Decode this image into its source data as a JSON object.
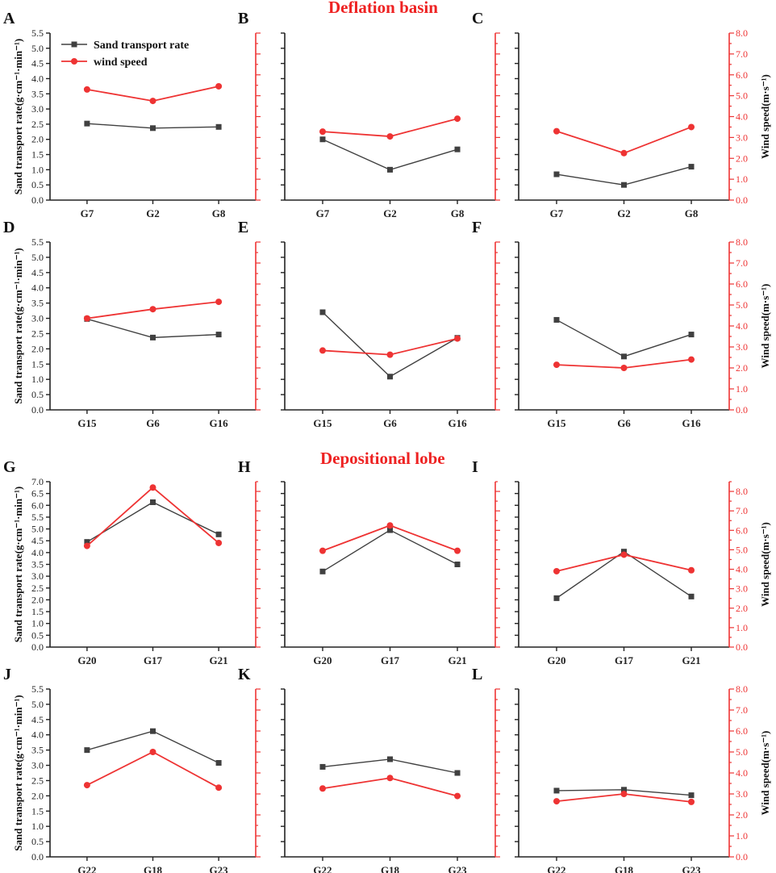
{
  "headings": {
    "top": "Deflation basin",
    "bottom": "Depositional lobe"
  },
  "colors": {
    "sand": "#404040",
    "wind": "#ee3333",
    "axis": "#222222",
    "wind_axis": "#ee3333"
  },
  "legend": {
    "sand_label": "Sand transport rate",
    "wind_label": "wind speed"
  },
  "chart_data": [
    {
      "type": "line",
      "panel": "A",
      "categories": [
        "G7",
        "G2",
        "G8"
      ],
      "ylabel": "Sand transport rate(g·cm⁻¹·min⁻¹)",
      "ylabel_right": "",
      "ylim": [
        0,
        5.5
      ],
      "y2lim": [
        0,
        8
      ],
      "yticks": [
        "0.0",
        "0.5",
        "1.0",
        "1.5",
        "2.0",
        "2.5",
        "3.0",
        "3.5",
        "4.0",
        "4.5",
        "5.0",
        "5.5"
      ],
      "y2ticks": [],
      "series": [
        {
          "name": "Sand transport rate",
          "axis": "left",
          "values": [
            2.52,
            2.37,
            2.41
          ]
        },
        {
          "name": "wind speed",
          "axis": "right",
          "values": [
            5.3,
            4.75,
            5.45
          ]
        }
      ]
    },
    {
      "type": "line",
      "panel": "B",
      "categories": [
        "G7",
        "G2",
        "G8"
      ],
      "ylabel": "",
      "ylabel_right": "",
      "ylim": [
        0,
        5.5
      ],
      "y2lim": [
        0,
        8
      ],
      "yticks": [],
      "y2ticks": [],
      "series": [
        {
          "name": "Sand transport rate",
          "axis": "left",
          "values": [
            2.0,
            1.0,
            1.67
          ]
        },
        {
          "name": "wind speed",
          "axis": "right",
          "values": [
            3.28,
            3.05,
            3.9
          ]
        }
      ]
    },
    {
      "type": "line",
      "panel": "C",
      "categories": [
        "G7",
        "G2",
        "G8"
      ],
      "ylabel": "",
      "ylabel_right": "Wind speed(m·s⁻¹)",
      "ylim": [
        0,
        5.5
      ],
      "y2lim": [
        0,
        8
      ],
      "yticks": [],
      "y2ticks": [
        "0.0",
        "1.0",
        "2.0",
        "3.0",
        "4.0",
        "5.0",
        "6.0",
        "7.0",
        "8.0"
      ],
      "series": [
        {
          "name": "Sand transport rate",
          "axis": "left",
          "values": [
            0.85,
            0.5,
            1.1
          ]
        },
        {
          "name": "wind speed",
          "axis": "right",
          "values": [
            3.3,
            2.25,
            3.5
          ]
        }
      ]
    },
    {
      "type": "line",
      "panel": "D",
      "categories": [
        "G15",
        "G6",
        "G16"
      ],
      "ylabel": "Sand transport rate(g·cm⁻¹·min⁻¹)",
      "ylabel_right": "",
      "ylim": [
        0,
        5.5
      ],
      "y2lim": [
        0,
        8
      ],
      "yticks": [
        "0.0",
        "0.5",
        "1.0",
        "1.5",
        "2.0",
        "2.5",
        "3.0",
        "3.5",
        "4.0",
        "4.5",
        "5.0",
        "5.5"
      ],
      "y2ticks": [],
      "series": [
        {
          "name": "Sand transport rate",
          "axis": "left",
          "values": [
            2.98,
            2.37,
            2.47
          ]
        },
        {
          "name": "wind speed",
          "axis": "right",
          "values": [
            4.36,
            4.8,
            5.15
          ]
        }
      ]
    },
    {
      "type": "line",
      "panel": "E",
      "categories": [
        "G15",
        "G6",
        "G16"
      ],
      "ylabel": "",
      "ylabel_right": "",
      "ylim": [
        0,
        5.5
      ],
      "y2lim": [
        0,
        8
      ],
      "yticks": [],
      "y2ticks": [],
      "series": [
        {
          "name": "Sand transport rate",
          "axis": "left",
          "values": [
            3.2,
            1.09,
            2.36
          ]
        },
        {
          "name": "wind speed",
          "axis": "right",
          "values": [
            2.83,
            2.63,
            3.4
          ]
        }
      ]
    },
    {
      "type": "line",
      "panel": "F",
      "categories": [
        "G15",
        "G6",
        "G16"
      ],
      "ylabel": "",
      "ylabel_right": "Wind speed(m·s⁻¹)",
      "ylim": [
        0,
        5.5
      ],
      "y2lim": [
        0,
        8
      ],
      "yticks": [],
      "y2ticks": [
        "0.0",
        "1.0",
        "2.0",
        "3.0",
        "4.0",
        "5.0",
        "6.0",
        "7.0",
        "8.0"
      ],
      "series": [
        {
          "name": "Sand transport rate",
          "axis": "left",
          "values": [
            2.95,
            1.75,
            2.47
          ]
        },
        {
          "name": "wind speed",
          "axis": "right",
          "values": [
            2.15,
            2.0,
            2.4
          ]
        }
      ]
    },
    {
      "type": "line",
      "panel": "G",
      "categories": [
        "G20",
        "G17",
        "G21"
      ],
      "ylabel": "Sand transport rate(g·cm⁻¹·min⁻¹)",
      "ylabel_right": "",
      "ylim": [
        0,
        7
      ],
      "y2lim": [
        0,
        8.5
      ],
      "yticks": [
        "0.0",
        "0.5",
        "1.0",
        "1.5",
        "2.0",
        "2.5",
        "3.0",
        "3.5",
        "4.0",
        "4.5",
        "5.0",
        "5.5",
        "6.0",
        "6.5",
        "7.0"
      ],
      "y2ticks": [],
      "series": [
        {
          "name": "Sand transport rate",
          "axis": "left",
          "values": [
            4.45,
            6.13,
            4.77
          ]
        },
        {
          "name": "wind speed",
          "axis": "right",
          "values": [
            5.2,
            8.2,
            5.35
          ]
        }
      ]
    },
    {
      "type": "line",
      "panel": "H",
      "categories": [
        "G20",
        "G17",
        "G21"
      ],
      "ylabel": "",
      "ylabel_right": "",
      "ylim": [
        0,
        7
      ],
      "y2lim": [
        0,
        8.5
      ],
      "yticks": [],
      "y2ticks": [],
      "series": [
        {
          "name": "Sand transport rate",
          "axis": "left",
          "values": [
            3.2,
            4.95,
            3.5
          ]
        },
        {
          "name": "wind speed",
          "axis": "right",
          "values": [
            4.95,
            6.25,
            4.95
          ]
        }
      ]
    },
    {
      "type": "line",
      "panel": "I",
      "categories": [
        "G20",
        "G17",
        "G21"
      ],
      "ylabel": "",
      "ylabel_right": "Wind speed(m·s⁻¹)",
      "ylim": [
        0,
        7
      ],
      "y2lim": [
        0,
        8.5
      ],
      "yticks": [],
      "y2ticks": [
        "0.0",
        "1.0",
        "2.0",
        "3.0",
        "4.0",
        "5.0",
        "6.0",
        "7.0",
        "8.0"
      ],
      "series": [
        {
          "name": "Sand transport rate",
          "axis": "left",
          "values": [
            2.07,
            4.04,
            2.14
          ]
        },
        {
          "name": "wind speed",
          "axis": "right",
          "values": [
            3.9,
            4.75,
            3.95
          ]
        }
      ]
    },
    {
      "type": "line",
      "panel": "J",
      "categories": [
        "G22",
        "G18",
        "G23"
      ],
      "ylabel": "Sand transport rate(g·cm⁻¹·min⁻¹)",
      "ylabel_right": "",
      "ylim": [
        0,
        5.5
      ],
      "y2lim": [
        0,
        8
      ],
      "yticks": [
        "0.0",
        "0.5",
        "1.0",
        "1.5",
        "2.0",
        "2.5",
        "3.0",
        "3.5",
        "4.0",
        "4.5",
        "5.0",
        "5.5"
      ],
      "y2ticks": [],
      "series": [
        {
          "name": "Sand transport rate",
          "axis": "left",
          "values": [
            3.5,
            4.12,
            3.08
          ]
        },
        {
          "name": "wind speed",
          "axis": "right",
          "values": [
            3.42,
            5.0,
            3.3
          ]
        }
      ]
    },
    {
      "type": "line",
      "panel": "K",
      "categories": [
        "G22",
        "G18",
        "G23"
      ],
      "ylabel": "",
      "ylabel_right": "",
      "ylim": [
        0,
        5.5
      ],
      "y2lim": [
        0,
        8
      ],
      "yticks": [],
      "y2ticks": [],
      "series": [
        {
          "name": "Sand transport rate",
          "axis": "left",
          "values": [
            2.95,
            3.2,
            2.75
          ]
        },
        {
          "name": "wind speed",
          "axis": "right",
          "values": [
            3.26,
            3.76,
            2.9
          ]
        }
      ]
    },
    {
      "type": "line",
      "panel": "L",
      "categories": [
        "G22",
        "G18",
        "G23"
      ],
      "ylabel": "",
      "ylabel_right": "Wind speed(m·s⁻¹)",
      "ylim": [
        0,
        5.5
      ],
      "y2lim": [
        0,
        8
      ],
      "yticks": [],
      "y2ticks": [
        "0.0",
        "1.0",
        "2.0",
        "3.0",
        "4.0",
        "5.0",
        "6.0",
        "7.0",
        "8.0"
      ],
      "series": [
        {
          "name": "Sand transport rate",
          "axis": "left",
          "values": [
            2.17,
            2.2,
            2.02
          ]
        },
        {
          "name": "wind speed",
          "axis": "right",
          "values": [
            2.65,
            3.0,
            2.62
          ]
        }
      ]
    }
  ]
}
